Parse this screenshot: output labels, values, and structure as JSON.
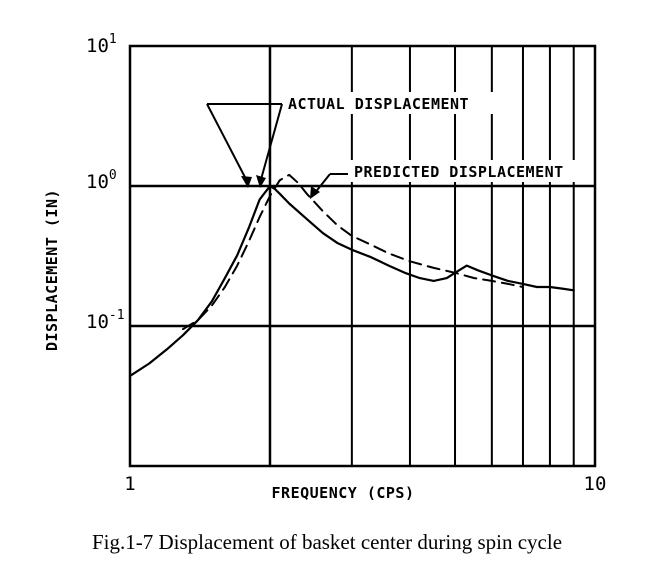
{
  "caption": "Fig.1-7  Displacement of basket center during spin cycle",
  "chart_data": {
    "type": "line",
    "xlabel": "FREQUENCY (CPS)",
    "ylabel": "DISPLACEMENT (IN)",
    "x_scale": "log",
    "y_scale": "log",
    "xlim": [
      1,
      10
    ],
    "ylim": [
      0.01,
      10
    ],
    "x_tick_labels": [
      {
        "value": 1,
        "label": "1"
      },
      {
        "value": 10,
        "label": "10"
      }
    ],
    "y_tick_labels": [
      {
        "value": 10,
        "base": "10",
        "exp": "1"
      },
      {
        "value": 1,
        "base": "10",
        "exp": "0"
      },
      {
        "value": 0.1,
        "base": "10",
        "exp": "-1"
      }
    ],
    "x_gridlines": [
      2,
      3,
      4,
      5,
      6,
      7,
      8,
      9
    ],
    "y_gridlines": [
      0.1,
      1
    ],
    "series": [
      {
        "name": "ACTUAL DISPLACEMENT",
        "style": "solid",
        "x": [
          1.0,
          1.1,
          1.2,
          1.3,
          1.4,
          1.5,
          1.6,
          1.7,
          1.8,
          1.9,
          2.0,
          2.05,
          2.1,
          2.2,
          2.4,
          2.6,
          2.8,
          3.0,
          3.3,
          3.6,
          3.9,
          4.2,
          4.5,
          4.8,
          5.0,
          5.3,
          5.6,
          6.0,
          6.5,
          7.0,
          7.5,
          8.0,
          8.5,
          9.0
        ],
        "y": [
          0.044,
          0.054,
          0.068,
          0.086,
          0.11,
          0.15,
          0.22,
          0.32,
          0.5,
          0.8,
          1.0,
          0.95,
          0.88,
          0.75,
          0.58,
          0.46,
          0.39,
          0.35,
          0.31,
          0.27,
          0.24,
          0.22,
          0.21,
          0.22,
          0.24,
          0.27,
          0.25,
          0.23,
          0.21,
          0.2,
          0.19,
          0.19,
          0.185,
          0.18
        ]
      },
      {
        "name": "PREDICTED DISPLACEMENT",
        "style": "dashed",
        "x": [
          1.3,
          1.4,
          1.5,
          1.6,
          1.7,
          1.8,
          1.9,
          2.0,
          2.1,
          2.2,
          2.3,
          2.4,
          2.6,
          2.8,
          3.0,
          3.3,
          3.6,
          4.0,
          4.5,
          5.0,
          5.5,
          6.0,
          6.5,
          7.0
        ],
        "y": [
          0.095,
          0.11,
          0.14,
          0.19,
          0.27,
          0.4,
          0.6,
          0.85,
          1.1,
          1.2,
          1.05,
          0.88,
          0.66,
          0.52,
          0.44,
          0.38,
          0.33,
          0.29,
          0.26,
          0.24,
          0.22,
          0.21,
          0.2,
          0.19
        ]
      }
    ],
    "annotations": [
      {
        "text": "ACTUAL DISPLACEMENT",
        "points_to": "ACTUAL DISPLACEMENT"
      },
      {
        "text": "PREDICTED DISPLACEMENT",
        "points_to": "PREDICTED DISPLACEMENT"
      }
    ]
  }
}
